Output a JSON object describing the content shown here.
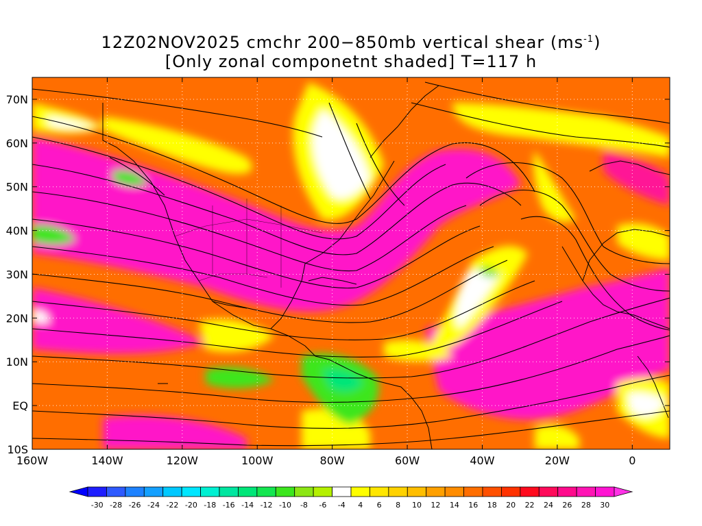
{
  "title": {
    "line1_main": "12Z02NOV2025 cmchr 200−850mb vertical shear (ms",
    "line1_sup": "-1",
    "line1_end": ")",
    "line2": "[Only zonal componetnt shaded] T=117 h"
  },
  "map": {
    "lon_range": [
      -160,
      10
    ],
    "lat_range": [
      -10,
      75
    ],
    "lat_ticks": [
      "10S",
      "EQ",
      "10N",
      "20N",
      "30N",
      "40N",
      "50N",
      "60N",
      "70N"
    ],
    "lon_ticks": [
      "160W",
      "140W",
      "120W",
      "100W",
      "80W",
      "60W",
      "40W",
      "20W",
      "0"
    ],
    "grid": "dotted",
    "overlay": "streamlines",
    "shaded_field": "zonal component of 200-850mb vertical shear"
  },
  "colorbar": {
    "placement": "bottom",
    "labels": [
      "-30",
      "-28",
      "-26",
      "-24",
      "-22",
      "-20",
      "-18",
      "-16",
      "-14",
      "-12",
      "-10",
      "-8",
      "-6",
      "-4",
      "4",
      "6",
      "8",
      "10",
      "12",
      "14",
      "16",
      "18",
      "20",
      "22",
      "24",
      "26",
      "28",
      "30"
    ],
    "colors": [
      "#1e1eff",
      "#2e5aff",
      "#1e82ff",
      "#14a0ff",
      "#00c8ff",
      "#00e6ff",
      "#00f0d2",
      "#00e6a0",
      "#00e678",
      "#14e650",
      "#3ce61e",
      "#8ce614",
      "#b4f000",
      "#ffffff",
      "#ffff00",
      "#ffe600",
      "#ffd200",
      "#ffbe00",
      "#ffa000",
      "#ff8c00",
      "#ff6e00",
      "#ff5000",
      "#ff3200",
      "#ff0a1e",
      "#ff0a5a",
      "#ff0a8c",
      "#ff14b4",
      "#ff14d2"
    ],
    "low_arrow_color": "#0000ff",
    "high_arrow_color": "#ff32e6"
  }
}
